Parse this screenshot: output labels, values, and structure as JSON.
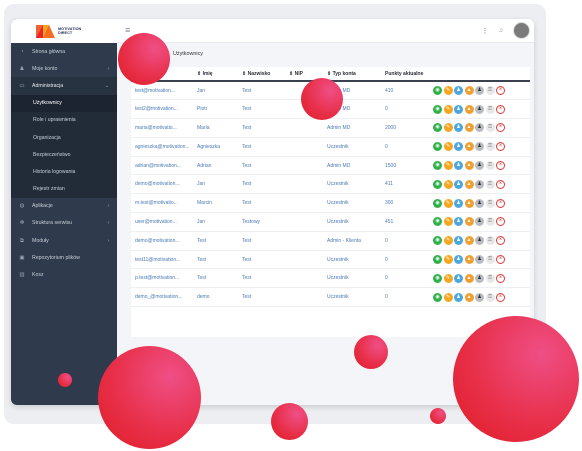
{
  "brand": {
    "line1": "MOTIVATION",
    "line2": "DIRECT"
  },
  "sidebar": {
    "items": [
      {
        "label": "Strona główna",
        "icon": "gauge-icon",
        "chevron": ""
      },
      {
        "label": "Moje konto",
        "icon": "user-icon",
        "chevron": "›"
      },
      {
        "label": "Administracja",
        "icon": "monitor-icon",
        "chevron": "⌄"
      },
      {
        "label": "Użytkownicy",
        "sub": true,
        "current": true
      },
      {
        "label": "Role i uprawnienia",
        "sub": true
      },
      {
        "label": "Organizacja",
        "sub": true
      },
      {
        "label": "Bezpieczeństwo",
        "sub": true
      },
      {
        "label": "Historia logowania",
        "sub": true
      },
      {
        "label": "Rejestr zmian",
        "sub": true
      },
      {
        "label": "Aplikacje",
        "icon": "globe-icon",
        "chevron": "›"
      },
      {
        "label": "Struktura serwisu",
        "icon": "gear-icon",
        "chevron": "›"
      },
      {
        "label": "Moduły",
        "icon": "modules-icon",
        "chevron": "›"
      },
      {
        "label": "Repozytorium plików",
        "icon": "images-icon",
        "chevron": ""
      },
      {
        "label": "Kosz",
        "icon": "trash-icon",
        "chevron": ""
      }
    ]
  },
  "breadcrumb": "Użytkownicy",
  "table": {
    "headers": [
      "",
      "⇕ Imię",
      "⇕ Nazwisko",
      "⇕ NIP",
      "⇕ Typ konta",
      "Punkty aktualne",
      ""
    ],
    "rows": [
      [
        "test@motivation...",
        "Jan",
        "Test",
        "",
        "Admin MD",
        "410"
      ],
      [
        "test2@motivation...",
        "Piotr",
        "Test",
        "",
        "Admin MD",
        "0"
      ],
      [
        "maria@motivatio...",
        "Maria",
        "Test",
        "",
        "Admin MD",
        "2000"
      ],
      [
        "agnieszka@motivation...",
        "Agnieszka",
        "Test",
        "",
        "Uczestnik",
        "0"
      ],
      [
        "adrian@motivation...",
        "Adrian",
        "Test",
        "",
        "Admin MD",
        "1500"
      ],
      [
        "demo@motivation...",
        "Jan",
        "Test",
        "",
        "Uczestnik",
        "411"
      ],
      [
        "m.test@motivatio...",
        "Marcin",
        "Test",
        "",
        "Uczestnik",
        "300"
      ],
      [
        "user@motivation...",
        "Jan",
        "Testowy",
        "",
        "Uczestnik",
        "451"
      ],
      [
        "demo@motivation...",
        "Test",
        "Test",
        "",
        "Admin - Klienta",
        "0"
      ],
      [
        "test11@motivation...",
        "Test",
        "Test",
        "",
        "Uczestnik",
        "0"
      ],
      [
        "p.test@motivation...",
        "Test",
        "Test",
        "",
        "Uczestnik",
        "0"
      ],
      [
        "demo_@motivation...",
        "demo",
        "Test",
        "",
        "Uczestnik",
        "0"
      ]
    ]
  },
  "colors": {
    "sidebar": "#2f3b4c",
    "link": "#4a7ab5",
    "accent": "#e8304a"
  }
}
